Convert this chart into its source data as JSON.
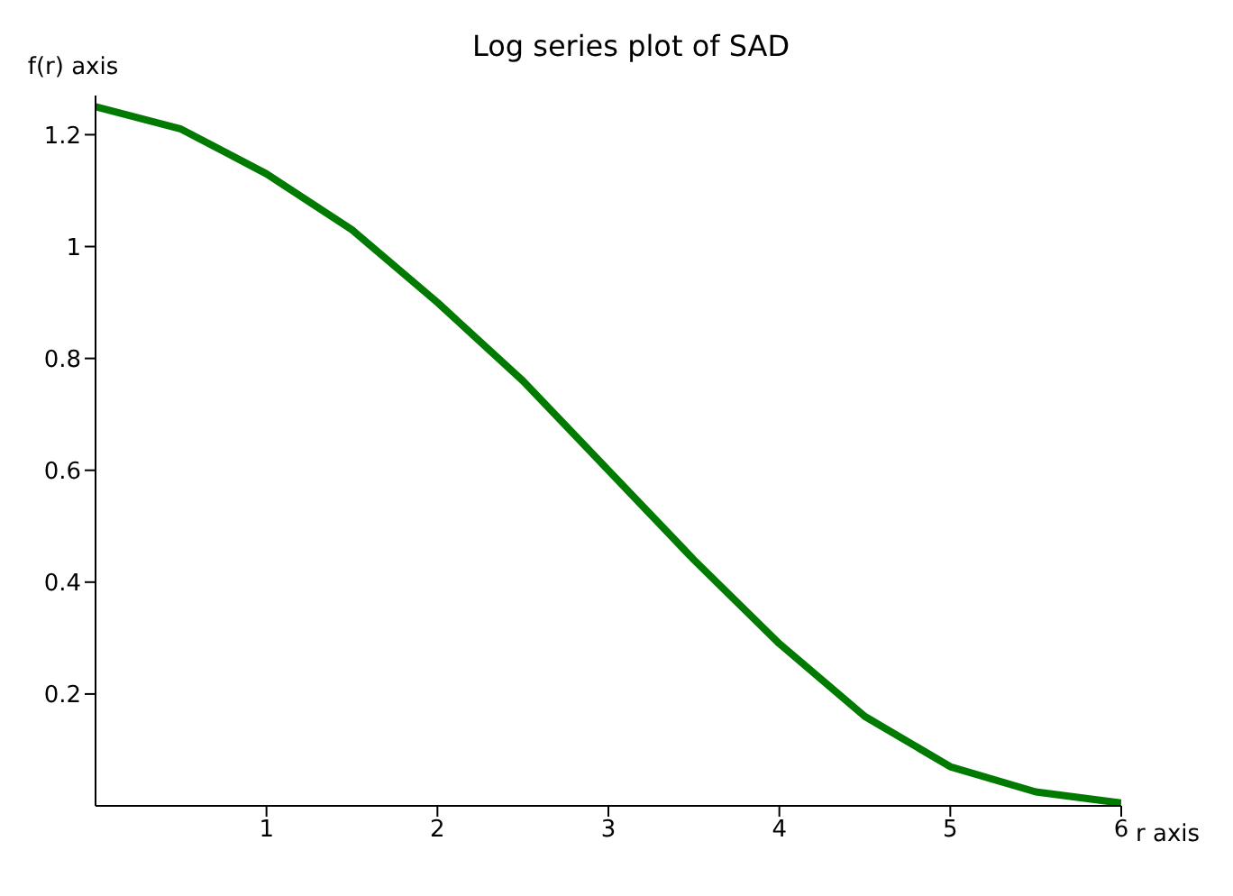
{
  "chart_data": {
    "type": "line",
    "title": "Log series plot of SAD",
    "xlabel": "r axis",
    "ylabel": "f(r) axis",
    "x": [
      0,
      0.5,
      1,
      1.5,
      2,
      2.5,
      3,
      3.5,
      4,
      4.5,
      5,
      5.5,
      6
    ],
    "series": [
      {
        "color": "#007a00",
        "values": [
          1.25,
          1.21,
          1.13,
          1.03,
          0.9,
          0.76,
          0.6,
          0.44,
          0.29,
          0.16,
          0.07,
          0.025,
          0.005
        ]
      }
    ],
    "xlim": [
      0,
      6
    ],
    "xticks": [
      1,
      2,
      3,
      4,
      5,
      6
    ],
    "ylim": [
      0,
      1.27
    ],
    "yticks": [
      0.2,
      0.4,
      0.6,
      0.8,
      1,
      1.2
    ],
    "grid": false,
    "legend": false,
    "marker": "none",
    "line_style": "solid"
  }
}
